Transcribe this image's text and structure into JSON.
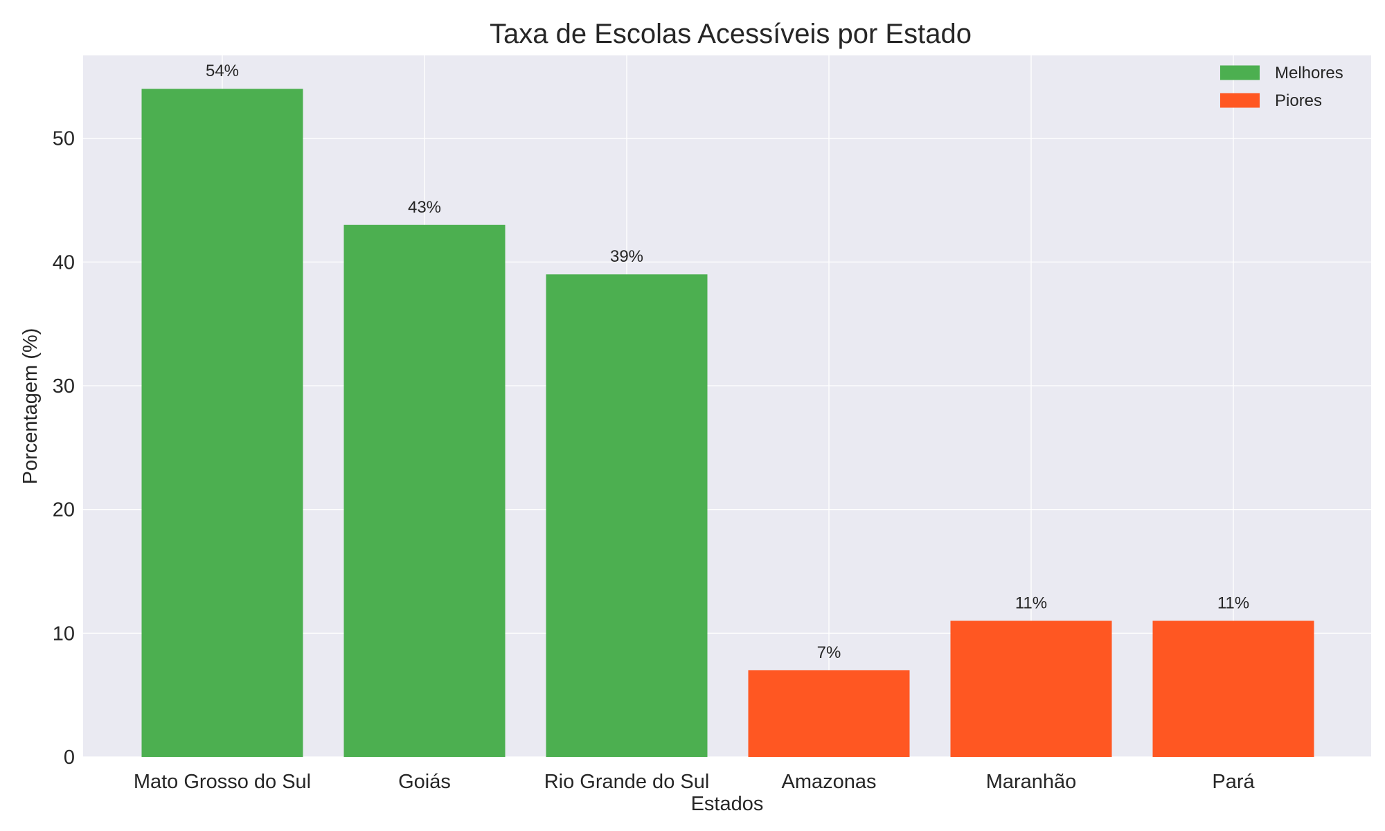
{
  "chart_data": {
    "type": "bar",
    "title": "Taxa de Escolas Acessíveis por Estado",
    "xlabel": "Estados",
    "ylabel": "Porcentagem (%)",
    "categories": [
      "Mato Grosso do Sul",
      "Goiás",
      "Rio Grande do Sul",
      "Amazonas",
      "Maranhão",
      "Pará"
    ],
    "values": [
      54,
      43,
      39,
      7,
      11,
      11
    ],
    "value_labels": [
      "54%",
      "43%",
      "39%",
      "7%",
      "11%",
      "11%"
    ],
    "groups": [
      "Melhores",
      "Melhores",
      "Melhores",
      "Piores",
      "Piores",
      "Piores"
    ],
    "legend": [
      {
        "name": "Melhores",
        "color": "#4caf50"
      },
      {
        "name": "Piores",
        "color": "#ff5722"
      }
    ],
    "legend_position": "top-right",
    "ylim": [
      0,
      56.7
    ],
    "yticks": [
      0,
      10,
      20,
      30,
      40,
      50
    ],
    "grid": true,
    "colors": {
      "plot_background": "#eaeaf2",
      "grid": "#ffffff",
      "text": "#262626"
    }
  }
}
